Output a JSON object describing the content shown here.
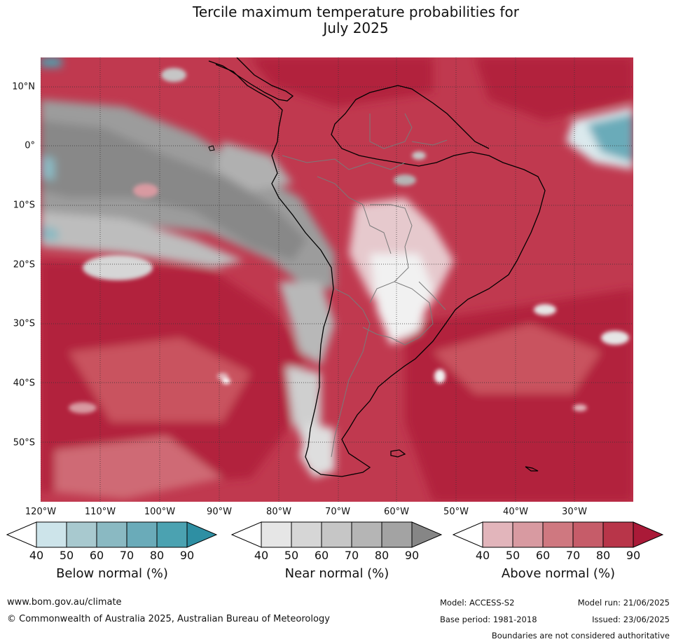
{
  "title_line1": "Tercile maximum temperature probabilities for",
  "title_line2": "July 2025",
  "lat_labels": [
    "10°N",
    "0°",
    "10°S",
    "20°S",
    "30°S",
    "40°S",
    "50°S"
  ],
  "lon_labels": [
    "120°W",
    "110°W",
    "100°W",
    "90°W",
    "80°W",
    "70°W",
    "60°W",
    "50°W",
    "40°W",
    "30°W"
  ],
  "legends": [
    {
      "title": "Below normal (%)",
      "ticks": [
        "40",
        "50",
        "60",
        "70",
        "80",
        "90"
      ],
      "colors": [
        "#ffffff",
        "#cde4ea",
        "#a8c9cf",
        "#8ab9c2",
        "#6aabb9",
        "#4ba2b1",
        "#2e8fa3"
      ]
    },
    {
      "title": "Near normal (%)",
      "ticks": [
        "40",
        "50",
        "60",
        "70",
        "80",
        "90"
      ],
      "colors": [
        "#ffffff",
        "#e6e6e6",
        "#d6d6d6",
        "#c6c6c6",
        "#b5b5b5",
        "#a3a3a3",
        "#868686"
      ]
    },
    {
      "title": "Above normal (%)",
      "ticks": [
        "40",
        "50",
        "60",
        "70",
        "80",
        "90"
      ],
      "colors": [
        "#ffffff",
        "#e2b5bb",
        "#d89aa1",
        "#cf7880",
        "#c65c69",
        "#b83549",
        "#aa1a38"
      ]
    }
  ],
  "footer": {
    "website": "www.bom.gov.au/climate",
    "copyright": "© Commonwealth of Australia 2025, Australian Bureau of Meteorology",
    "model": "Model: ACCESS-S2",
    "model_run": "Model run: 21/06/2025",
    "base_period": "Base period: 1981-2018",
    "issued": "Issued: 23/06/2025",
    "disclaimer": "Boundaries are not considered authoritative"
  }
}
